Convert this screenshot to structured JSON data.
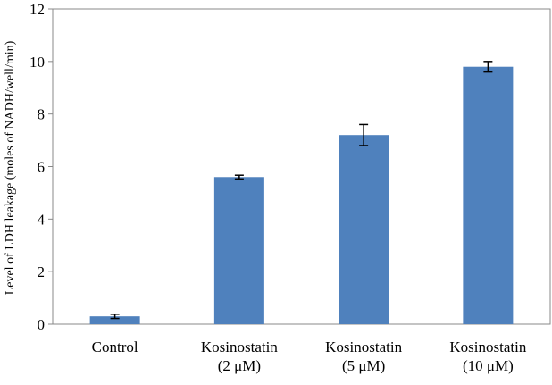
{
  "chart_data": {
    "type": "bar",
    "title": "",
    "xlabel": "",
    "ylabel": "Level of LDH leakage (moles of NADH/well/min)",
    "ylim": [
      0,
      12
    ],
    "yticks": [
      "0",
      "2",
      "4",
      "6",
      "8",
      "10",
      "12"
    ],
    "categories": [
      [
        "Control"
      ],
      [
        "Kosinostatin",
        "(2 μM)"
      ],
      [
        "Kosinostatin",
        "(5 μM)"
      ],
      [
        "Kosinostatin",
        "(10 μM)"
      ]
    ],
    "values": [
      0.3,
      5.6,
      7.2,
      9.8
    ],
    "errors": [
      0.08,
      0.07,
      0.4,
      0.2
    ],
    "bar_color": "#4f81bd",
    "grid": false,
    "legend": "none"
  }
}
